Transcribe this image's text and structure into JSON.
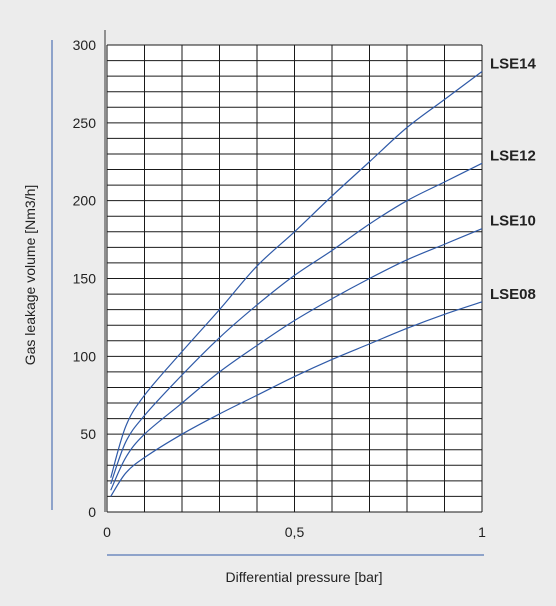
{
  "chart_data": {
    "type": "line",
    "xlabel": "Differential pressure  [bar]",
    "ylabel": "Gas leakage volume [Nm3/h]",
    "xlim": [
      0,
      1
    ],
    "ylim": [
      0,
      300
    ],
    "x_ticks": [
      {
        "value": 0,
        "label": "0"
      },
      {
        "value": 0.5,
        "label": "0,5"
      },
      {
        "value": 1,
        "label": "1"
      }
    ],
    "y_ticks": [
      {
        "value": 0,
        "label": "0"
      },
      {
        "value": 50,
        "label": "50"
      },
      {
        "value": 100,
        "label": "100"
      },
      {
        "value": 150,
        "label": "150"
      },
      {
        "value": 200,
        "label": "200"
      },
      {
        "value": 250,
        "label": "250"
      },
      {
        "value": 300,
        "label": "300"
      }
    ],
    "grid": true,
    "x_grid_step": 0.1,
    "y_grid_step": 10,
    "series_color": "#2f5aa8",
    "series": [
      {
        "name": "LSE14",
        "x": [
          0.01,
          0.05,
          0.1,
          0.2,
          0.3,
          0.4,
          0.5,
          0.6,
          0.7,
          0.8,
          0.9,
          1.0
        ],
        "y": [
          22,
          55,
          75,
          103,
          130,
          158,
          180,
          203,
          225,
          247,
          265,
          283
        ]
      },
      {
        "name": "LSE12",
        "x": [
          0.01,
          0.05,
          0.1,
          0.2,
          0.3,
          0.4,
          0.5,
          0.6,
          0.7,
          0.8,
          0.9,
          1.0
        ],
        "y": [
          18,
          45,
          62,
          88,
          112,
          133,
          152,
          168,
          185,
          200,
          212,
          224
        ]
      },
      {
        "name": "LSE10",
        "x": [
          0.01,
          0.05,
          0.1,
          0.2,
          0.3,
          0.4,
          0.5,
          0.6,
          0.7,
          0.8,
          0.9,
          1.0
        ],
        "y": [
          14,
          35,
          50,
          70,
          90,
          107,
          123,
          137,
          150,
          162,
          172,
          182
        ]
      },
      {
        "name": "LSE08",
        "x": [
          0.01,
          0.05,
          0.1,
          0.2,
          0.3,
          0.4,
          0.5,
          0.6,
          0.7,
          0.8,
          0.9,
          1.0
        ],
        "y": [
          10,
          25,
          35,
          50,
          63,
          75,
          87,
          98,
          108,
          118,
          127,
          135
        ]
      }
    ]
  }
}
